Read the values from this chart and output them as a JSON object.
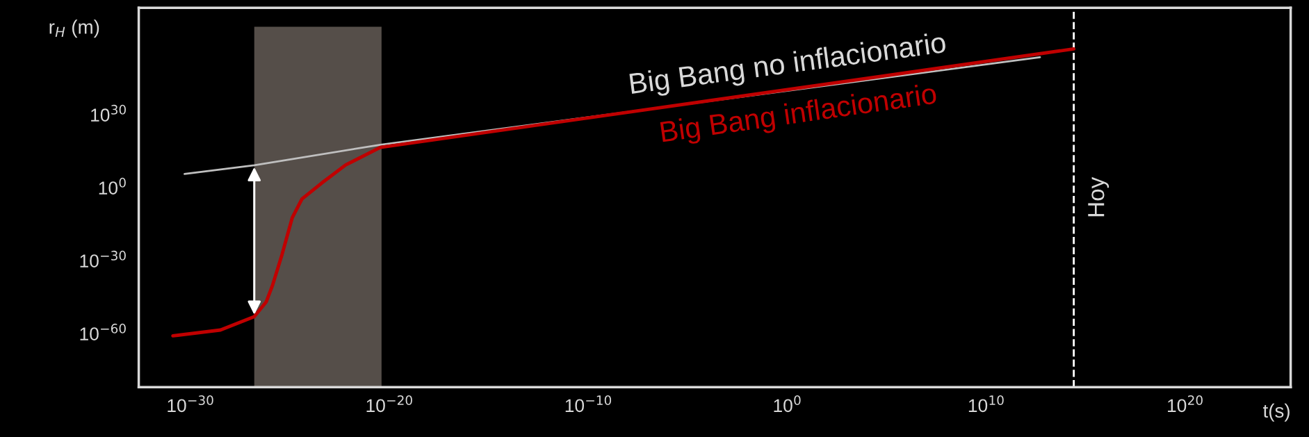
{
  "chart_data": {
    "type": "line",
    "xlabel": "t(s)",
    "ylabel": "r$_{H}$ (m)",
    "log": "xy",
    "xlim": [
      2.5e-33,
      2e+25
    ],
    "ylim": [
      1e-82,
      1e+74
    ],
    "xticks": [
      {
        "value": 1e-30,
        "label": "10$^{−30}$"
      },
      {
        "value": 1e-20,
        "label": "10$^{−20}$"
      },
      {
        "value": 1e-10,
        "label": "10$^{−10}$"
      },
      {
        "value": 1,
        "label": "10$^{0}$"
      },
      {
        "value": 10000000000.0,
        "label": "10$^{10}$"
      },
      {
        "value": 1e+20,
        "label": "10$^{20}$"
      }
    ],
    "yticks": [
      {
        "value": 1e-60,
        "label": "10$^{−60}$"
      },
      {
        "value": 1e-30,
        "label": "10$^{−30}$"
      },
      {
        "value": 1,
        "label": "10$^{0}$"
      },
      {
        "value": 1e+30,
        "label": "10$^{30}$"
      }
    ],
    "series": [
      {
        "name": "Big Bang no inflacionario",
        "color": "#bfbfbf",
        "x": [
          5e-31,
          1.6e-27,
          3.5e-21,
          5000000000000.0
        ],
        "values": [
          500000.0,
          2000000000.0,
          5e+17,
          5e+53
        ]
      },
      {
        "name": "Big Bang inflacionario",
        "color": "#c00000",
        "x": [
          1.3e-31,
          3.2e-29,
          1.6e-27,
          6.3e-27,
          1.3e-26,
          4e-26,
          1.3e-25,
          4e-25,
          4e-24,
          6.3e-23,
          3.5e-21,
          250000000000000.0
        ],
        "values": [
          1.3e-61,
          3.2e-59,
          1e-53,
          1e-47,
          5e-41,
          4e-28,
          5e-13,
          2.5e-05,
          100,
          2500000000.0,
          4e+16,
          1.3e+57
        ]
      }
    ],
    "ref_lines": [
      {
        "axis": "x",
        "value": 250000000000000.0,
        "label": "Hoy",
        "color": "#ffffff",
        "line_style": "dashed"
      }
    ],
    "bands": [
      {
        "axis": "x",
        "from": 1.6e-27,
        "to": 4e-21,
        "color": "#554e49"
      }
    ],
    "grid": false,
    "marker": "none",
    "line_style": "solid"
  }
}
